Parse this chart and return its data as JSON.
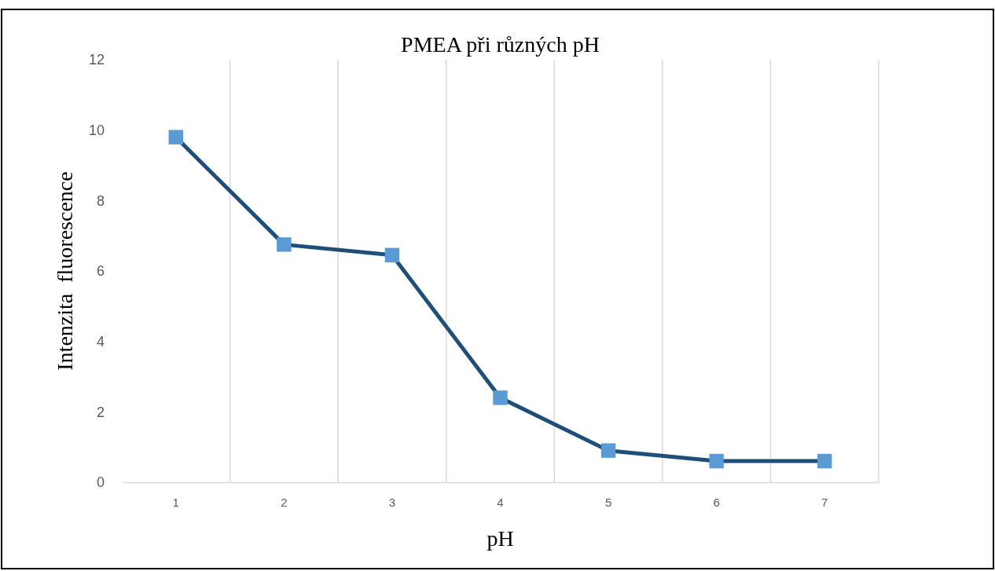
{
  "chart_data": {
    "type": "line",
    "title": "PMEA při různých pH",
    "xlabel": "pH",
    "ylabel": "Intenzita  fluorescence",
    "categories": [
      "1",
      "2",
      "3",
      "4",
      "5",
      "6",
      "7"
    ],
    "series": [
      {
        "color": "#1f4e79",
        "values": [
          9.8,
          6.75,
          6.45,
          2.4,
          0.9,
          0.6,
          0.6
        ]
      }
    ],
    "ylim": [
      0,
      12
    ],
    "yticks": [
      0,
      2,
      4,
      6,
      8,
      10,
      12
    ],
    "grid": "x",
    "marker": "square",
    "line_style": "solid"
  }
}
